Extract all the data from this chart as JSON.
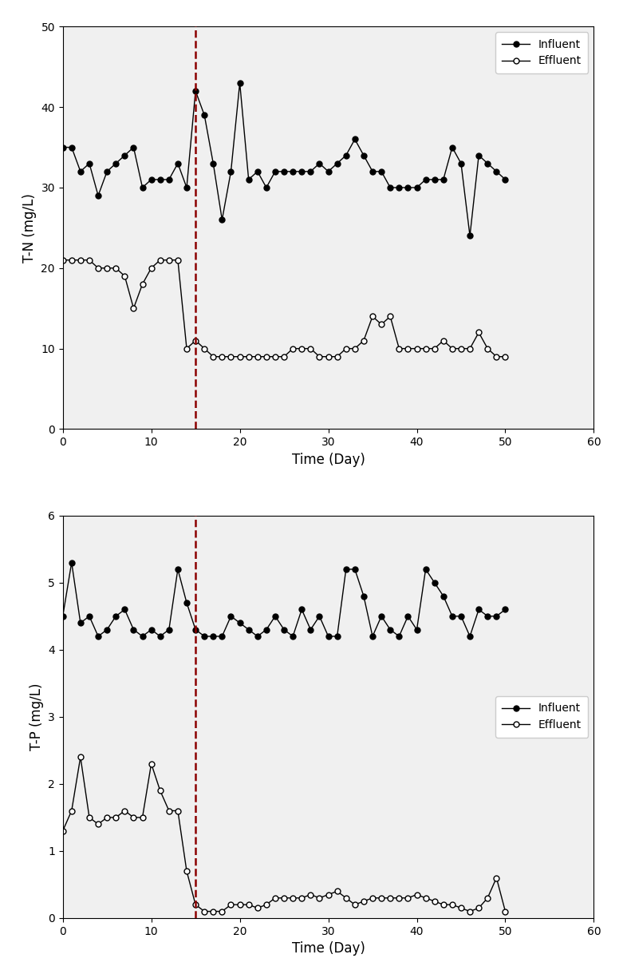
{
  "tn_influent_x": [
    0,
    1,
    2,
    3,
    4,
    5,
    6,
    7,
    8,
    9,
    10,
    11,
    12,
    13,
    14,
    15,
    16,
    17,
    18,
    19,
    20,
    21,
    22,
    23,
    24,
    25,
    26,
    27,
    28,
    29,
    30,
    31,
    32,
    33,
    34,
    35,
    36,
    37,
    38,
    39,
    40,
    41,
    42,
    43,
    44,
    45,
    46,
    47,
    48,
    49,
    50
  ],
  "tn_influent_y": [
    35,
    35,
    32,
    33,
    29,
    32,
    33,
    34,
    35,
    30,
    31,
    31,
    31,
    33,
    30,
    42,
    39,
    33,
    26,
    32,
    43,
    31,
    32,
    30,
    32,
    32,
    32,
    32,
    32,
    33,
    32,
    33,
    34,
    36,
    34,
    32,
    32,
    30,
    30,
    30,
    30,
    31,
    31,
    31,
    35,
    33,
    24,
    34,
    33,
    32,
    31
  ],
  "tn_effluent_x": [
    0,
    1,
    2,
    3,
    4,
    5,
    6,
    7,
    8,
    9,
    10,
    11,
    12,
    13,
    14,
    15,
    16,
    17,
    18,
    19,
    20,
    21,
    22,
    23,
    24,
    25,
    26,
    27,
    28,
    29,
    30,
    31,
    32,
    33,
    34,
    35,
    36,
    37,
    38,
    39,
    40,
    41,
    42,
    43,
    44,
    45,
    46,
    47,
    48,
    49,
    50
  ],
  "tn_effluent_y": [
    21,
    21,
    21,
    21,
    20,
    20,
    20,
    19,
    15,
    18,
    20,
    21,
    21,
    21,
    10,
    11,
    10,
    9,
    9,
    9,
    9,
    9,
    9,
    9,
    9,
    9,
    10,
    10,
    10,
    9,
    9,
    9,
    10,
    10,
    11,
    14,
    13,
    14,
    10,
    10,
    10,
    10,
    10,
    11,
    10,
    10,
    10,
    12,
    10,
    9,
    9
  ],
  "tp_influent_x": [
    0,
    1,
    2,
    3,
    4,
    5,
    6,
    7,
    8,
    9,
    10,
    11,
    12,
    13,
    14,
    15,
    16,
    17,
    18,
    19,
    20,
    21,
    22,
    23,
    24,
    25,
    26,
    27,
    28,
    29,
    30,
    31,
    32,
    33,
    34,
    35,
    36,
    37,
    38,
    39,
    40,
    41,
    42,
    43,
    44,
    45,
    46,
    47,
    48,
    49,
    50
  ],
  "tp_influent_y": [
    4.5,
    5.3,
    4.4,
    4.5,
    4.2,
    4.3,
    4.5,
    4.6,
    4.3,
    4.2,
    4.3,
    4.2,
    4.3,
    5.2,
    4.7,
    4.3,
    4.2,
    4.2,
    4.2,
    4.5,
    4.4,
    4.3,
    4.2,
    4.3,
    4.5,
    4.3,
    4.2,
    4.6,
    4.3,
    4.5,
    4.2,
    4.2,
    5.2,
    5.2,
    4.8,
    4.2,
    4.5,
    4.3,
    4.2,
    4.5,
    4.3,
    5.2,
    5.0,
    4.8,
    4.5,
    4.5,
    4.2,
    4.6,
    4.5,
    4.5,
    4.6
  ],
  "tp_effluent_x": [
    0,
    1,
    2,
    3,
    4,
    5,
    6,
    7,
    8,
    9,
    10,
    11,
    12,
    13,
    14,
    15,
    16,
    17,
    18,
    19,
    20,
    21,
    22,
    23,
    24,
    25,
    26,
    27,
    28,
    29,
    30,
    31,
    32,
    33,
    34,
    35,
    36,
    37,
    38,
    39,
    40,
    41,
    42,
    43,
    44,
    45,
    46,
    47,
    48,
    49,
    50
  ],
  "tp_effluent_y": [
    1.3,
    1.6,
    2.4,
    1.5,
    1.4,
    1.5,
    1.5,
    1.6,
    1.5,
    1.5,
    2.3,
    1.9,
    1.6,
    1.6,
    0.7,
    0.2,
    0.1,
    0.1,
    0.1,
    0.2,
    0.2,
    0.2,
    0.15,
    0.2,
    0.3,
    0.3,
    0.3,
    0.3,
    0.35,
    0.3,
    0.35,
    0.4,
    0.3,
    0.2,
    0.25,
    0.3,
    0.3,
    0.3,
    0.3,
    0.3,
    0.35,
    0.3,
    0.25,
    0.2,
    0.2,
    0.15,
    0.1,
    0.15,
    0.3,
    0.6,
    0.1
  ],
  "dashed_line_x": 15,
  "tn_ylim": [
    0,
    50
  ],
  "tp_ylim": [
    0,
    6
  ],
  "xlim": [
    0,
    60
  ],
  "xticks": [
    0,
    10,
    20,
    30,
    40,
    50,
    60
  ],
  "tn_yticks": [
    0,
    10,
    20,
    30,
    40,
    50
  ],
  "tp_yticks": [
    0,
    1,
    2,
    3,
    4,
    5,
    6
  ],
  "xlabel": "Time (Day)",
  "tn_ylabel": "T-N (mg/L)",
  "tp_ylabel": "T-P (mg/L)",
  "dashed_color": "#8B0000",
  "influent_color": "#000000",
  "effluent_color": "#000000",
  "markersize": 5,
  "linewidth": 1.0,
  "legend_influent": "Influent",
  "legend_effluent": "Effluent",
  "plot_bg_color": "#f0f0f0",
  "fig_bg_color": "#ffffff"
}
